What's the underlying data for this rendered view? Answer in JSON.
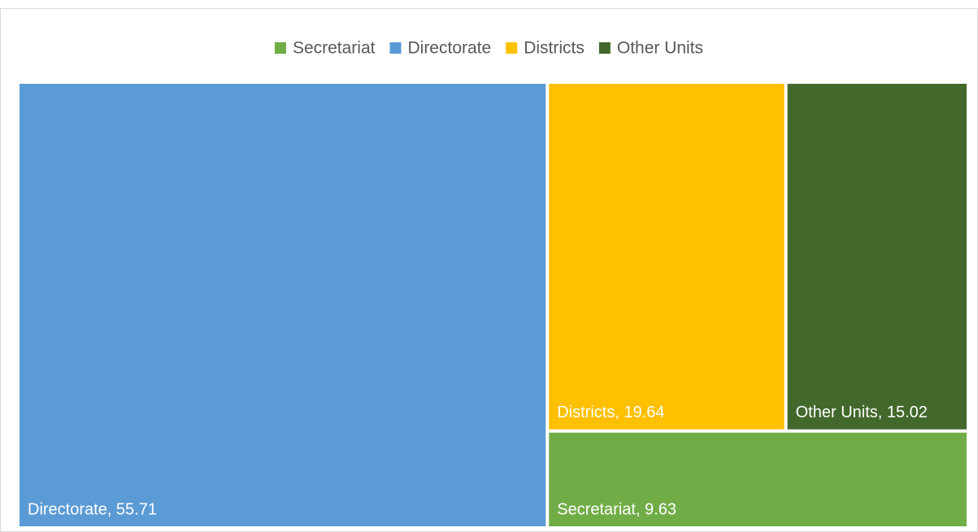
{
  "chart_data": {
    "type": "treemap",
    "categories": [
      "Secretariat",
      "Directorate",
      "Districts",
      "Other Units"
    ],
    "values": [
      9.63,
      55.71,
      19.64,
      15.02
    ],
    "value_labels": [
      "Secretariat, 9.63",
      "Directorate, 55.71",
      "Districts, 19.64",
      "Other Units, 15.02"
    ],
    "colors": [
      "#70ad47",
      "#5b9bd5",
      "#ffc000",
      "#43682b"
    ],
    "legend": "top"
  }
}
